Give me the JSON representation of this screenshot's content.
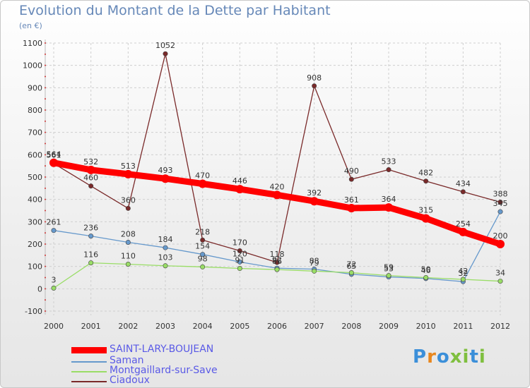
{
  "chart_data": {
    "type": "line",
    "title": "Evolution du Montant de la Dette par Habitant",
    "subtitle": "(en €)",
    "xlabel": "",
    "ylabel": "",
    "ylim": [
      -100,
      1100
    ],
    "yticks": [
      -100,
      0,
      100,
      200,
      300,
      400,
      500,
      600,
      700,
      800,
      900,
      1000,
      1100
    ],
    "x": [
      2000,
      2001,
      2002,
      2003,
      2004,
      2005,
      2006,
      2007,
      2008,
      2009,
      2010,
      2011,
      2012
    ],
    "grid": true,
    "legend_position": "bottom-left",
    "series": [
      {
        "name": "SAINT-LARY-BOUJEAN",
        "color": "#ff0000",
        "width": 9,
        "values": [
          564,
          532,
          513,
          493,
          470,
          446,
          420,
          392,
          361,
          364,
          315,
          254,
          200
        ]
      },
      {
        "name": "Saman",
        "color": "#6699cc",
        "width": 1.3,
        "values": [
          261,
          236,
          208,
          184,
          154,
          120,
          92,
          88,
          65,
          53,
          46,
          32,
          345
        ]
      },
      {
        "name": "Montgaillard-sur-Save",
        "color": "#99dd66",
        "width": 1.3,
        "values": [
          3,
          116,
          110,
          103,
          98,
          91,
          86,
          79,
          72,
          59,
          50,
          42,
          34
        ]
      },
      {
        "name": "Ciadoux",
        "color": "#7a2a2a",
        "width": 1.3,
        "values": [
          561,
          460,
          360,
          1052,
          218,
          170,
          118,
          908,
          490,
          533,
          482,
          434,
          388
        ]
      }
    ]
  },
  "logo": {
    "text": "Proxiti",
    "colors": [
      "#3b8fd9",
      "#e8871e",
      "#3b8fd9",
      "#7fbf3f",
      "#7fbf3f",
      "#3b8fd9",
      "#7fbf3f"
    ]
  }
}
